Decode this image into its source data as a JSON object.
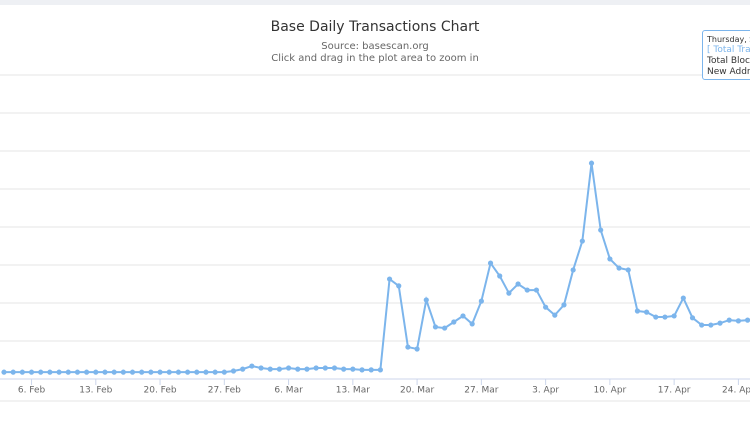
{
  "chart_data": {
    "type": "line",
    "title": "Base Daily Transactions Chart",
    "subtitle": "Source: basescan.org",
    "zoom_hint": "Click and drag in the plot area to zoom in",
    "tooltip": [
      "Thursday, Se",
      "[ Total Tra",
      "Total Block",
      "New Addre"
    ],
    "categories": [
      null,
      null,
      null,
      "6. Feb",
      null,
      null,
      null,
      null,
      null,
      null,
      "13. Feb",
      null,
      null,
      null,
      null,
      null,
      null,
      "20. Feb",
      null,
      null,
      null,
      null,
      null,
      null,
      "27. Feb",
      null,
      null,
      null,
      null,
      null,
      null,
      "6. Mar",
      null,
      null,
      null,
      null,
      null,
      null,
      "13. Mar",
      null,
      null,
      null,
      null,
      null,
      null,
      "20. Mar",
      null,
      null,
      null,
      null,
      null,
      null,
      "27. Mar",
      null,
      null,
      null,
      null,
      null,
      null,
      "3. Apr",
      null,
      null,
      null,
      null,
      null,
      null,
      "10. Apr",
      null,
      null,
      null,
      null,
      null,
      null,
      "17. Apr",
      null,
      null,
      null,
      null,
      null,
      null,
      "24. Apr",
      null
    ],
    "series": [
      {
        "color": "#7cb5ec",
        "values": [
          0.18,
          0.18,
          0.18,
          0.18,
          0.18,
          0.18,
          0.18,
          0.18,
          0.18,
          0.18,
          0.18,
          0.18,
          0.18,
          0.18,
          0.18,
          0.18,
          0.18,
          0.18,
          0.18,
          0.18,
          0.18,
          0.18,
          0.18,
          0.18,
          0.18,
          0.21,
          0.26,
          0.34,
          0.29,
          0.26,
          0.26,
          0.29,
          0.26,
          0.26,
          0.29,
          0.29,
          0.29,
          0.26,
          0.26,
          0.24,
          0.24,
          0.24,
          2.63,
          2.45,
          0.84,
          0.79,
          2.08,
          1.37,
          1.34,
          1.5,
          1.66,
          1.45,
          2.05,
          3.05,
          2.71,
          2.26,
          2.5,
          2.34,
          2.34,
          1.89,
          1.68,
          1.95,
          2.87,
          3.63,
          5.68,
          3.92,
          3.16,
          2.92,
          2.87,
          1.79,
          1.76,
          1.63,
          1.63,
          1.66,
          2.13,
          1.61,
          1.42,
          1.42,
          1.47,
          1.55,
          1.53,
          1.55
        ]
      }
    ],
    "ylim": [
      0,
      8
    ],
    "yticks": [
      0,
      1,
      2,
      3,
      4,
      5,
      6,
      7,
      8
    ],
    "grid": true
  }
}
